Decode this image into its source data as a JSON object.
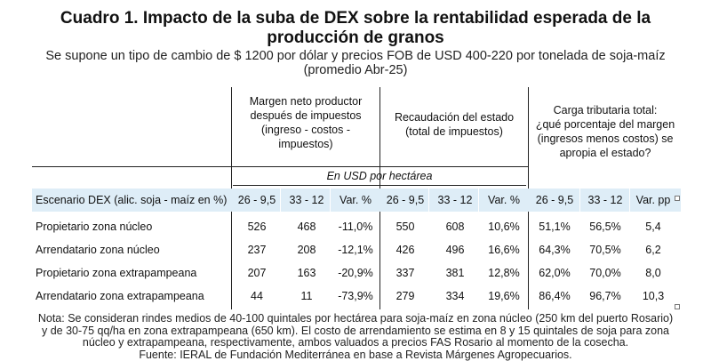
{
  "title_line1": "Cuadro 1. Impacto de la suba de DEX sobre la rentabilidad esperada de la",
  "title_line2": "producción de granos",
  "subtitle_line1": "Se supone un tipo de cambio de $ 1200 por dólar y precios FOB de USD 400-220 por tonelada de soja-maíz",
  "subtitle_line2": "(promedio Abr-25)",
  "groups": [
    {
      "lines": [
        "Margen neto productor",
        "después de impuestos",
        "(ingreso - costos -",
        "impuestos)"
      ]
    },
    {
      "lines": [
        "Recaudación del estado",
        "(total de impuestos)"
      ]
    },
    {
      "lines": [
        "Carga tributaria total:",
        "¿qué porcentaje del margen",
        "(ingresos menos costos) se",
        "apropia el estado?"
      ]
    }
  ],
  "unit_label": "En USD por hectárea",
  "header": [
    "Escenario DEX (alic. soja - maíz en %)",
    "26 - 9,5",
    "33 - 12",
    "Var. %",
    "26 - 9,5",
    "33 - 12",
    "Var. %",
    "26 - 9,5",
    "33 - 12",
    "Var. pp"
  ],
  "rows": [
    [
      "Propietario zona núcleo",
      "526",
      "468",
      "-11,0%",
      "550",
      "608",
      "10,6%",
      "51,1%",
      "56,5%",
      "5,4"
    ],
    [
      "Arrendatario zona núcleo",
      "237",
      "208",
      "-12,1%",
      "426",
      "496",
      "16,6%",
      "64,3%",
      "70,5%",
      "6,2"
    ],
    [
      "Propietario zona extrapampeana",
      "207",
      "163",
      "-20,9%",
      "337",
      "381",
      "12,8%",
      "62,0%",
      "70,0%",
      "8,0"
    ],
    [
      "Arrendatario zona extrapampeana",
      "44",
      "11",
      "-73,9%",
      "279",
      "334",
      "19,6%",
      "86,4%",
      "96,7%",
      "10,3"
    ]
  ],
  "note_lines": [
    "Nota: Se consideran rindes medios de 40-100 quintales por hectárea para soja-maíz en zona núcleo (250 km del puerto Rosario)",
    "y de 30-75 qq/ha en zona extrapampeana (650 km). El costo de arrendamiento se estima en 8 y 15 quintales de soja para zona",
    "núcleo y extrapampeana, respectivamente, ambos valuados a precios FAS Rosario al momento de la cosecha.",
    "Fuente: IERAL de Fundación Mediterránea en base a Revista Márgenes Agropecuarios."
  ]
}
